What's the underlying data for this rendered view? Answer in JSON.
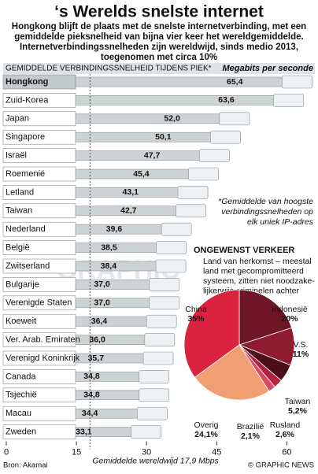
{
  "chart_data": [
    {
      "type": "bar",
      "orientation": "horizontal",
      "title": "‘s Werelds snelste internet",
      "subtitle": [
        "Hongkong blijft de plaats met de snelste internetverbinding, met een",
        "gemiddelde pieksnelheid van bijna vier keer het wereldgemiddelde.",
        "Internetverbindingssnelheden zijn wereldwijd, sinds medio 2013,",
        "toegenomen met circa 10%"
      ],
      "heading": "GEMIDDELDE VERBINDINGSSNELHEID TIJDENS PIEK*",
      "unit_label": "Megabits per seconde",
      "footnote": [
        "*Gemiddelde van hoogste",
        "verbindingssnelheden op",
        "elk uniek IP-adres"
      ],
      "categories": [
        "Hongkong",
        "Zuid-Korea",
        "Japan",
        "Singapore",
        "Israël",
        "Roemenië",
        "Letland",
        "Taiwan",
        "Nederland",
        "België",
        "Zwitserland",
        "Bulgarije",
        "Verenigde Staten",
        "Koeweit",
        "Ver. Arab. Emiraten",
        "Verenigd Koninkrijk",
        "Canada",
        "Tsjechië",
        "Macau",
        "Zweden"
      ],
      "values": [
        65.4,
        63.6,
        52.0,
        50.1,
        47.7,
        45.4,
        43.1,
        42.7,
        39.6,
        38.5,
        38.4,
        37.0,
        37.0,
        36.4,
        36.0,
        35.7,
        34.8,
        34.8,
        34.4,
        33.1
      ],
      "value_labels": [
        "65,4",
        "63,6",
        "52,0",
        "50,1",
        "47,7",
        "45,4",
        "43,1",
        "42,7",
        "39,6",
        "38,5",
        "38,4",
        "37,0",
        "37,0",
        "36,4",
        "36,0",
        "35,7",
        "34,8",
        "34,8",
        "34,4",
        "33,1"
      ],
      "color": "#cdd2d5",
      "xlim": [
        0,
        66
      ],
      "xticks": [
        0,
        15,
        30,
        45,
        60
      ],
      "world_average": 17.9,
      "world_average_label": "Gemiddelde wereldwijd 17,9 Mbps",
      "source": "Bron: Akamai",
      "credit": "© GRAPHIC NEWS",
      "watermark": "GRAPHIC"
    },
    {
      "type": "pie",
      "title": "ONGEWENST VERKEER",
      "description": [
        "Land van herkomst – meestal",
        "land met gecompromitteerd",
        "systeem, zitten niet noodzake-",
        "lijkerwijs criminelen achter"
      ],
      "categories": [
        "Indonesië",
        "V.S.",
        "Taiwan",
        "Rusland",
        "Brazilië",
        "Overig",
        "China"
      ],
      "values": [
        20,
        11,
        5.2,
        2.6,
        2.1,
        24.1,
        35
      ],
      "value_labels": [
        "20%",
        "11%",
        "5,2%",
        "2,6%",
        "2,1%",
        "24,1%",
        "35%"
      ],
      "colors": [
        "#6e1626",
        "#8f1b30",
        "#4d0e1a",
        "#b02440",
        "#d84a66",
        "#f29e73",
        "#d9233f"
      ]
    }
  ]
}
